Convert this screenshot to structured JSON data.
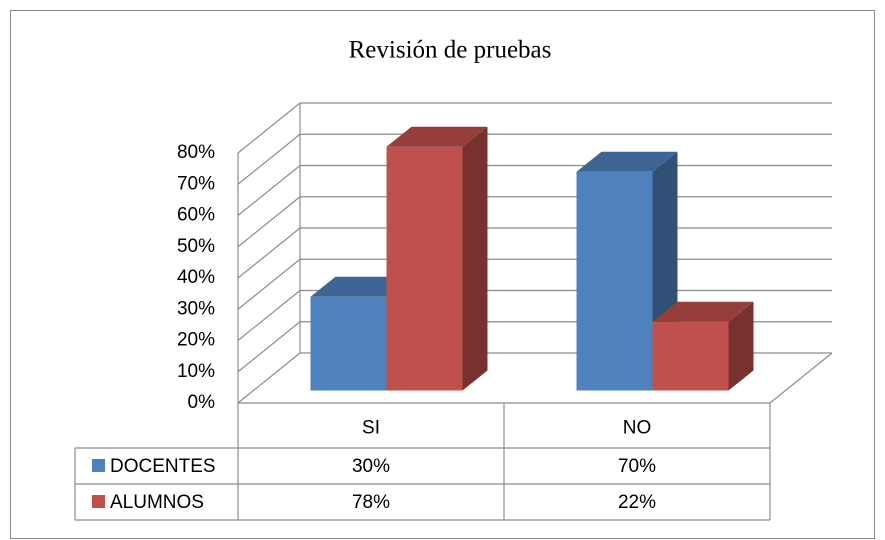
{
  "chart_data": {
    "type": "bar3d",
    "title": "Revisión de pruebas",
    "categories": [
      "SI",
      "NO"
    ],
    "series": [
      {
        "name": "DOCENTES",
        "color": "#4f81bd",
        "values": [
          30,
          70
        ],
        "value_labels": [
          "30%",
          "70%"
        ]
      },
      {
        "name": "ALUMNOS",
        "color": "#c0504d",
        "values": [
          78,
          22
        ],
        "value_labels": [
          "78%",
          "22%"
        ]
      }
    ],
    "ylim": [
      0,
      80
    ],
    "yticks": [
      {
        "value": 0,
        "label": "0%"
      },
      {
        "value": 10,
        "label": "10%"
      },
      {
        "value": 20,
        "label": "20%"
      },
      {
        "value": 30,
        "label": "30%"
      },
      {
        "value": 40,
        "label": "40%"
      },
      {
        "value": 50,
        "label": "50%"
      },
      {
        "value": 60,
        "label": "60%"
      },
      {
        "value": 70,
        "label": "70%"
      },
      {
        "value": 80,
        "label": "80%"
      }
    ],
    "grid": true,
    "data_table": true
  }
}
